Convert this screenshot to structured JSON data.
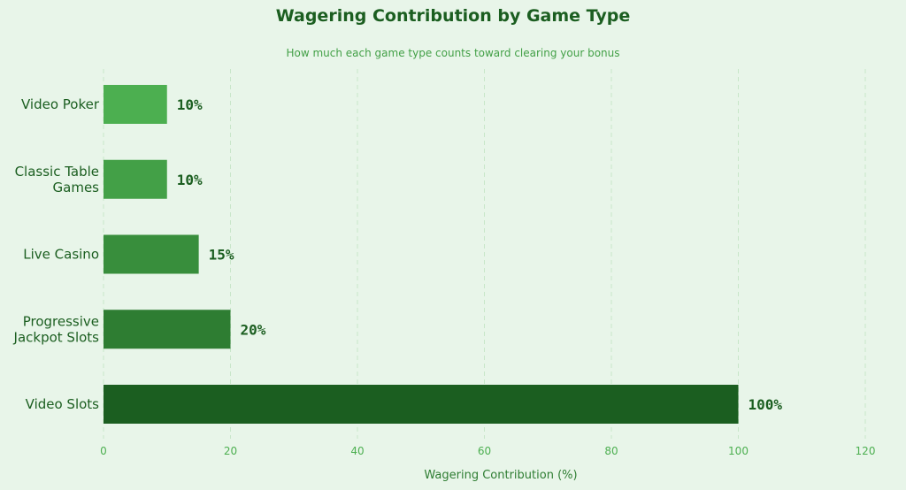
{
  "chart_data": {
    "type": "bar",
    "orientation": "horizontal",
    "title": "Wagering Contribution by Game Type",
    "subtitle": "How much each game type counts toward clearing your bonus",
    "xlabel": "Wagering Contribution (%)",
    "ylabel": "",
    "categories": [
      [
        "Video Slots"
      ],
      [
        "Progressive",
        "Jackpot Slots"
      ],
      [
        "Live Casino"
      ],
      [
        "Classic Table",
        "Games"
      ],
      [
        "Video Poker"
      ]
    ],
    "values": [
      100,
      20,
      15,
      10,
      10
    ],
    "value_labels": [
      "100%",
      "20%",
      "15%",
      "10%",
      "10%"
    ],
    "bar_colors": [
      "#1b5e20",
      "#2e7d32",
      "#388e3c",
      "#43a047",
      "#4caf50"
    ],
    "xlim": [
      0,
      120
    ],
    "xticks": [
      0,
      20,
      40,
      60,
      80,
      100,
      120
    ],
    "xtick_labels": [
      "0",
      "20",
      "40",
      "60",
      "80",
      "100",
      "120"
    ],
    "grid": "vertical-dashed",
    "legend": "none"
  }
}
